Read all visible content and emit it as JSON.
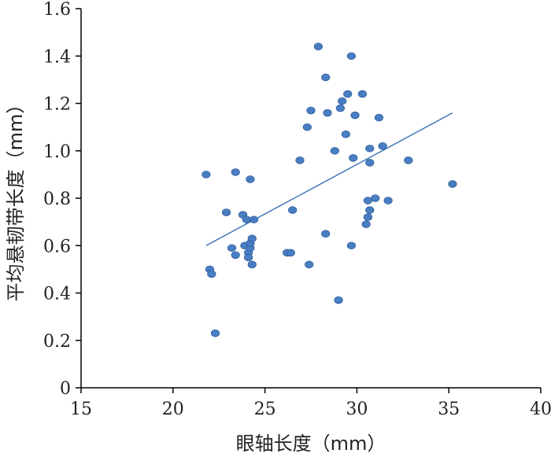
{
  "chart_data": {
    "type": "scatter",
    "title": "",
    "xlabel": "眼轴长度（mm）",
    "ylabel": "平均悬韧带长度（mm）",
    "xlim": [
      15,
      40
    ],
    "ylim": [
      0,
      1.6
    ],
    "x_ticks": [
      "15",
      "20",
      "25",
      "30",
      "35",
      "40"
    ],
    "y_ticks": [
      "0",
      "0.2",
      "0.4",
      "0.6",
      "0.8",
      "1.0",
      "1.2",
      "1.4",
      "1.6"
    ],
    "grid": false,
    "colors": {
      "point": "#4a7ec2",
      "point_edge": "#2f5f9e",
      "trendline": "#3a73b8",
      "axis": "#000000"
    },
    "series": [
      {
        "points": [
          [
            21.8,
            0.9
          ],
          [
            22.0,
            0.5
          ],
          [
            22.1,
            0.48
          ],
          [
            22.3,
            0.23
          ],
          [
            22.9,
            0.74
          ],
          [
            23.2,
            0.59
          ],
          [
            23.4,
            0.56
          ],
          [
            23.4,
            0.91
          ],
          [
            23.8,
            0.73
          ],
          [
            23.9,
            0.6
          ],
          [
            24.0,
            0.71
          ],
          [
            24.1,
            0.57
          ],
          [
            24.1,
            0.55
          ],
          [
            24.2,
            0.59
          ],
          [
            24.2,
            0.61
          ],
          [
            24.3,
            0.63
          ],
          [
            24.2,
            0.88
          ],
          [
            24.3,
            0.52
          ],
          [
            24.4,
            0.71
          ],
          [
            26.2,
            0.57
          ],
          [
            26.4,
            0.57
          ],
          [
            26.5,
            0.75
          ],
          [
            26.9,
            0.96
          ],
          [
            27.3,
            1.1
          ],
          [
            27.4,
            0.52
          ],
          [
            27.5,
            1.17
          ],
          [
            27.9,
            1.44
          ],
          [
            28.3,
            0.65
          ],
          [
            28.3,
            1.31
          ],
          [
            28.4,
            1.16
          ],
          [
            28.8,
            1.0
          ],
          [
            29.0,
            0.37
          ],
          [
            29.1,
            1.18
          ],
          [
            29.2,
            1.21
          ],
          [
            29.4,
            1.07
          ],
          [
            29.5,
            1.24
          ],
          [
            29.7,
            1.4
          ],
          [
            29.7,
            0.6
          ],
          [
            29.8,
            0.97
          ],
          [
            29.9,
            1.15
          ],
          [
            30.3,
            1.24
          ],
          [
            30.5,
            0.69
          ],
          [
            30.6,
            0.79
          ],
          [
            30.6,
            0.72
          ],
          [
            30.7,
            1.01
          ],
          [
            30.7,
            0.75
          ],
          [
            30.7,
            0.95
          ],
          [
            31.0,
            0.8
          ],
          [
            31.2,
            1.14
          ],
          [
            31.4,
            1.02
          ],
          [
            31.7,
            0.79
          ],
          [
            32.8,
            0.96
          ],
          [
            35.2,
            0.86
          ]
        ]
      }
    ],
    "trendline": {
      "x": [
        21.8,
        35.2
      ],
      "y": [
        0.6,
        1.16
      ]
    }
  }
}
